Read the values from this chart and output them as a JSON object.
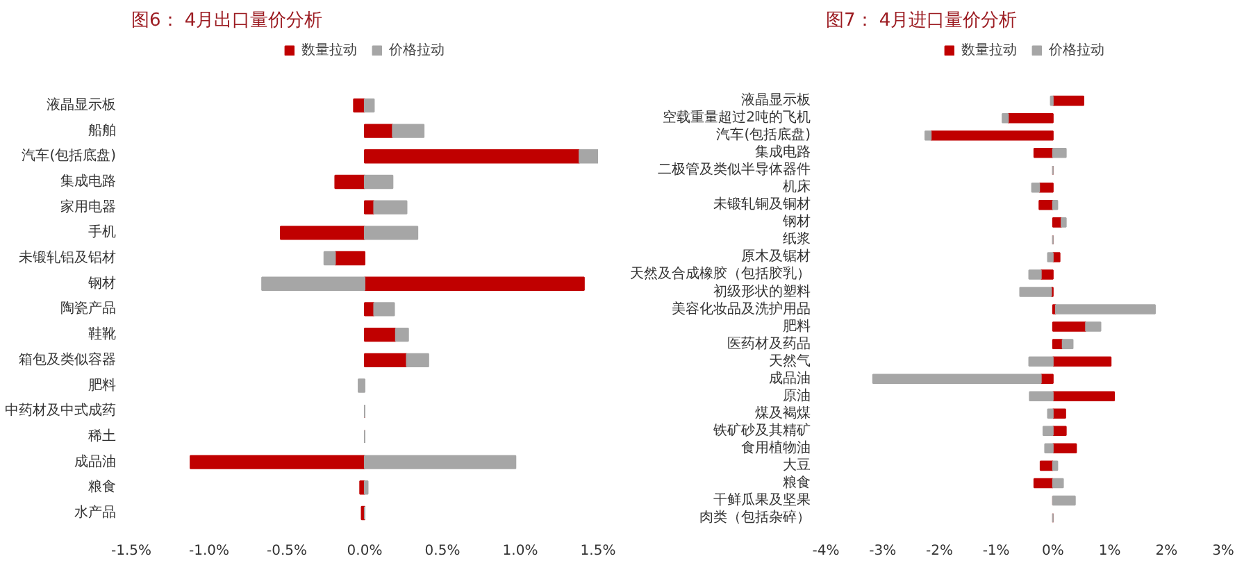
{
  "chart_data": [
    {
      "type": "bar",
      "orientation": "horizontal",
      "stacked": true,
      "title": "图6：  4月出口量价分析",
      "legend": "top",
      "categories": [
        "液晶显示板",
        "船舶",
        "汽车(包括底盘)",
        "集成电路",
        "家用电器",
        "手机",
        "未锻轧铝及铝材",
        "钢材",
        "陶瓷产品",
        "鞋靴",
        "箱包及类似容器",
        "肥料",
        "中药材及中式成药",
        "稀土",
        "成品油",
        "粮食",
        "水产品"
      ],
      "series": [
        {
          "name": "数量拉动",
          "color": "#c00000",
          "values": [
            -0.07,
            0.18,
            1.38,
            -0.19,
            0.06,
            -0.54,
            -0.19,
            1.41,
            0.06,
            0.2,
            0.27,
            0,
            0,
            0,
            -1.12,
            -0.03,
            -0.02
          ]
        },
        {
          "name": "价格拉动",
          "color": "#a6a6a6",
          "values": [
            0.06,
            0.2,
            0.13,
            0.18,
            0.21,
            0.34,
            -0.07,
            -0.66,
            0.13,
            0.08,
            0.14,
            -0.04,
            0,
            0,
            0.97,
            0.02,
            0
          ]
        }
      ],
      "xlim": [
        -1.5,
        1.5
      ],
      "xticks": [
        {
          "value": -1.5,
          "label": "-1.5%"
        },
        {
          "value": -1.0,
          "label": "-1.0%"
        },
        {
          "value": -0.5,
          "label": "-0.5%"
        },
        {
          "value": 0,
          "label": "0.0%"
        },
        {
          "value": 0.5,
          "label": "0.5%"
        },
        {
          "value": 1.0,
          "label": "1.0%"
        },
        {
          "value": 1.5,
          "label": "1.5%"
        }
      ]
    },
    {
      "type": "bar",
      "orientation": "horizontal",
      "stacked": true,
      "title": "图7：  4月进口量价分析",
      "legend": "top",
      "categories": [
        "液晶显示板",
        "空载重量超过2吨的飞机",
        "汽车(包括底盘)",
        "集成电路",
        "二极管及类似半导体器件",
        "机床",
        "未锻轧铜及铜材",
        "钢材",
        "纸浆",
        "原木及锯材",
        "天然及合成橡胶（包括胶乳）",
        "初级形状的塑料",
        "美容化妆品及洗护用品",
        "肥料",
        "医药材及药品",
        "天然气",
        "成品油",
        "原油",
        "煤及褐煤",
        "铁矿砂及其精矿",
        "食用植物油",
        "大豆",
        "粮食",
        "干鲜瓜果及坚果",
        "肉类（包括杂碎）"
      ],
      "series": [
        {
          "name": "数量拉动",
          "color": "#c00000",
          "values": [
            0.54,
            -0.79,
            -2.15,
            -0.33,
            0,
            -0.24,
            -0.24,
            0.15,
            0,
            0.12,
            -0.21,
            -0.03,
            0.05,
            0.58,
            0.17,
            1.02,
            -0.21,
            1.08,
            0.22,
            0.23,
            0.41,
            -0.22,
            -0.33,
            0,
            0
          ]
        },
        {
          "name": "价格拉动",
          "color": "#a6a6a6",
          "values": [
            -0.04,
            -0.1,
            -0.1,
            0.23,
            0,
            -0.13,
            0.08,
            0.08,
            0,
            -0.09,
            -0.21,
            -0.55,
            1.75,
            0.26,
            0.18,
            -0.42,
            -2.96,
            -0.41,
            -0.09,
            -0.17,
            -0.14,
            0.08,
            0.18,
            0.39,
            0
          ]
        }
      ],
      "xlim": [
        -4,
        3
      ],
      "xticks": [
        {
          "value": -4,
          "label": "-4%"
        },
        {
          "value": -3,
          "label": "-3%"
        },
        {
          "value": -2,
          "label": "-2%"
        },
        {
          "value": -1,
          "label": "-1%"
        },
        {
          "value": 0,
          "label": "0%"
        },
        {
          "value": 1,
          "label": "1%"
        },
        {
          "value": 2,
          "label": "2%"
        },
        {
          "value": 3,
          "label": "3%"
        }
      ]
    }
  ]
}
